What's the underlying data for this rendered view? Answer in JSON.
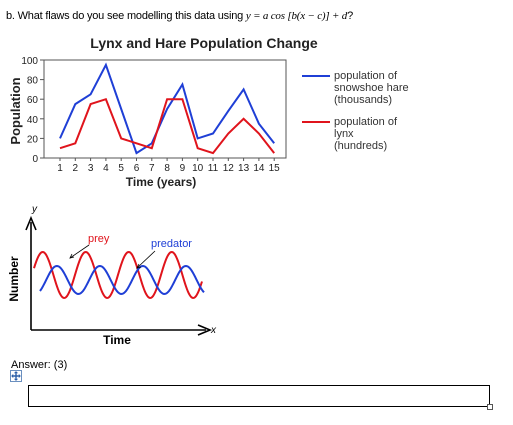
{
  "question": {
    "prefix": "b. What flaws do you see modelling this data using ",
    "equation": "y = a cos [b(x − c)] + d",
    "suffix": "?"
  },
  "chart_data": [
    {
      "type": "line",
      "title": "Lynx and Hare Population Change",
      "xlabel": "Time (years)",
      "ylabel": "Population",
      "x": [
        1,
        2,
        3,
        4,
        5,
        6,
        7,
        8,
        9,
        10,
        11,
        12,
        13,
        14,
        15
      ],
      "xticks": [
        "1",
        "2",
        "3",
        "4",
        "5",
        "6",
        "7",
        "8",
        "9",
        "10",
        "11",
        "12",
        "13",
        "14",
        "15"
      ],
      "ylim": [
        0,
        100
      ],
      "yticks": [
        "0",
        "20",
        "40",
        "60",
        "80",
        "100"
      ],
      "grid": false,
      "legend_position": "right",
      "series": [
        {
          "name": "population of snowshoe hare (thousands)",
          "legend_lines": [
            "population of",
            "snowshoe hare",
            "(thousands)"
          ],
          "color": "#1f3fd6",
          "values": [
            20,
            55,
            65,
            95,
            50,
            5,
            15,
            50,
            75,
            20,
            25,
            48,
            70,
            35,
            15
          ]
        },
        {
          "name": "population of lynx (hundreds)",
          "legend_lines": [
            "population of",
            "lynx",
            "(hundreds)"
          ],
          "color": "#e0141c",
          "values": [
            10,
            15,
            55,
            60,
            20,
            15,
            10,
            60,
            60,
            10,
            5,
            25,
            40,
            25,
            5
          ]
        }
      ]
    },
    {
      "type": "line",
      "title": "",
      "xlabel": "Time",
      "ylabel": "Number",
      "x_axis_letter": "x",
      "y_axis_letter": "y",
      "series": [
        {
          "name": "prey",
          "color": "#e0141c"
        },
        {
          "name": "predator",
          "color": "#1f3fd6"
        }
      ]
    }
  ],
  "answer": {
    "label": "Answer: (3)",
    "add_icon": "plus-move-icon",
    "value": ""
  }
}
